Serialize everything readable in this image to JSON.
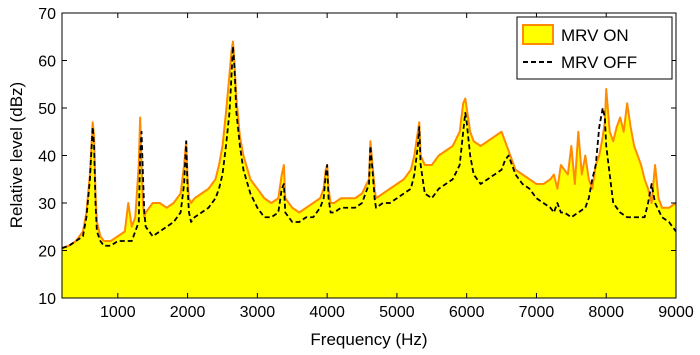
{
  "chart_data": {
    "type": "area",
    "xlabel": "Frequency (Hz)",
    "ylabel": "Relative level (dBz)",
    "xlim": [
      200,
      9000
    ],
    "ylim": [
      10,
      70
    ],
    "x_ticks": [
      1000,
      2000,
      3000,
      4000,
      5000,
      6000,
      7000,
      8000,
      9000
    ],
    "x_tick_labels": [
      "1000",
      "2000",
      "3000",
      "4000",
      "5000",
      "6000",
      "7000",
      "8000",
      "9000"
    ],
    "y_ticks": [
      10,
      20,
      30,
      40,
      50,
      60,
      70
    ],
    "y_tick_labels": [
      "10",
      "20",
      "30",
      "40",
      "50",
      "60",
      "70"
    ],
    "grid": false,
    "legend_position": "top-right",
    "colors": {
      "fill": "#ffff00",
      "edge": "#ff8c00",
      "off_line": "#000000"
    },
    "series": [
      {
        "name": "MRV ON",
        "style": "filled area",
        "x": [
          200,
          300,
          400,
          500,
          550,
          600,
          640,
          660,
          680,
          700,
          750,
          800,
          900,
          1000,
          1100,
          1150,
          1200,
          1250,
          1300,
          1320,
          1340,
          1360,
          1380,
          1400,
          1500,
          1600,
          1700,
          1800,
          1900,
          1950,
          1980,
          2000,
          2020,
          2050,
          2100,
          2200,
          2300,
          2400,
          2450,
          2500,
          2550,
          2600,
          2630,
          2650,
          2670,
          2700,
          2750,
          2800,
          2900,
          3000,
          3100,
          3200,
          3300,
          3350,
          3380,
          3400,
          3500,
          3600,
          3700,
          3800,
          3900,
          3950,
          3980,
          4000,
          4020,
          4050,
          4100,
          4200,
          4300,
          4400,
          4500,
          4600,
          4620,
          4650,
          4680,
          4700,
          4800,
          4900,
          5000,
          5100,
          5200,
          5250,
          5300,
          5320,
          5340,
          5400,
          5500,
          5600,
          5700,
          5800,
          5900,
          5950,
          5980,
          6000,
          6050,
          6100,
          6200,
          6300,
          6400,
          6500,
          6550,
          6600,
          6650,
          6700,
          6800,
          6900,
          7000,
          7100,
          7200,
          7250,
          7300,
          7350,
          7400,
          7450,
          7500,
          7550,
          7600,
          7650,
          7700,
          7750,
          7800,
          7850,
          7900,
          7950,
          7980,
          8000,
          8050,
          8100,
          8150,
          8200,
          8250,
          8300,
          8350,
          8400,
          8450,
          8500,
          8550,
          8600,
          8650,
          8700,
          8750,
          8800,
          8900,
          9000
        ],
        "values": [
          20.5,
          21,
          22,
          24,
          28,
          36,
          47,
          44,
          32,
          26,
          23,
          22,
          22,
          23,
          24,
          30,
          25,
          27,
          38,
          48,
          38,
          30,
          27,
          28,
          30,
          30,
          29,
          30,
          32,
          38,
          43,
          35,
          31,
          30,
          31,
          32,
          33,
          35,
          38,
          42,
          49,
          57,
          62,
          64,
          60,
          52,
          44,
          40,
          35,
          33,
          31,
          30,
          31,
          36,
          38,
          31,
          29,
          28,
          29,
          30,
          31,
          33,
          37,
          38,
          33,
          30,
          30,
          31,
          31,
          31,
          32,
          35,
          43,
          38,
          33,
          31,
          32,
          33,
          34,
          35,
          37,
          40,
          45,
          47,
          40,
          38,
          38,
          40,
          41,
          42,
          45,
          51,
          52,
          50,
          45,
          43,
          42,
          43,
          44,
          45,
          43,
          41,
          39,
          37,
          36,
          35,
          34,
          34,
          35,
          36,
          33,
          38,
          37,
          36,
          42,
          34,
          45,
          36,
          40,
          35,
          33,
          38,
          40,
          44,
          47,
          54,
          45,
          43,
          46,
          48,
          45,
          51,
          46,
          42,
          40,
          38,
          35,
          33,
          30,
          38,
          31,
          29,
          29,
          30
        ]
      },
      {
        "name": "MRV OFF",
        "style": "dashed line",
        "x": [
          200,
          300,
          400,
          500,
          550,
          600,
          640,
          660,
          680,
          700,
          750,
          800,
          900,
          1000,
          1100,
          1200,
          1300,
          1320,
          1340,
          1360,
          1380,
          1400,
          1500,
          1600,
          1700,
          1800,
          1900,
          1950,
          1980,
          2000,
          2020,
          2050,
          2100,
          2200,
          2300,
          2400,
          2450,
          2500,
          2550,
          2600,
          2630,
          2650,
          2670,
          2700,
          2750,
          2800,
          2900,
          3000,
          3100,
          3200,
          3300,
          3350,
          3380,
          3400,
          3500,
          3600,
          3700,
          3800,
          3900,
          3950,
          3980,
          4000,
          4020,
          4050,
          4100,
          4200,
          4300,
          4400,
          4500,
          4600,
          4620,
          4650,
          4680,
          4700,
          4800,
          4900,
          5000,
          5100,
          5200,
          5250,
          5300,
          5320,
          5340,
          5400,
          5500,
          5600,
          5700,
          5800,
          5900,
          5950,
          5980,
          6000,
          6050,
          6100,
          6200,
          6300,
          6400,
          6500,
          6550,
          6600,
          6650,
          6700,
          6800,
          6900,
          7000,
          7100,
          7200,
          7250,
          7300,
          7350,
          7400,
          7500,
          7600,
          7700,
          7750,
          7800,
          7850,
          7900,
          7950,
          7980,
          8000,
          8050,
          8100,
          8200,
          8300,
          8400,
          8500,
          8550,
          8600,
          8650,
          8700,
          8800,
          8900,
          9000
        ],
        "values": [
          20.5,
          21,
          22,
          23,
          27,
          35,
          46,
          42,
          30,
          24,
          22,
          21,
          21,
          22,
          22,
          22,
          26,
          40,
          45,
          36,
          28,
          25,
          23,
          24,
          25,
          26,
          28,
          34,
          43,
          33,
          28,
          26,
          27,
          28,
          29,
          31,
          33,
          36,
          42,
          49,
          57,
          63,
          59,
          49,
          42,
          37,
          32,
          29,
          27,
          27,
          28,
          33,
          34,
          28,
          26,
          26,
          27,
          27,
          29,
          31,
          36,
          38,
          31,
          28,
          28,
          29,
          29,
          29,
          30,
          34,
          42,
          37,
          31,
          29,
          30,
          30,
          31,
          32,
          33,
          36,
          42,
          46,
          38,
          32,
          31,
          33,
          34,
          35,
          38,
          45,
          49,
          47,
          40,
          36,
          34,
          35,
          36,
          37,
          39,
          40,
          38,
          36,
          34,
          33,
          31,
          30,
          29,
          28,
          30,
          28,
          28,
          27,
          28,
          29,
          31,
          35,
          38,
          46,
          50,
          48,
          42,
          36,
          30,
          28,
          27,
          27,
          27,
          27,
          30,
          34,
          30,
          27,
          26,
          24
        ]
      }
    ]
  }
}
